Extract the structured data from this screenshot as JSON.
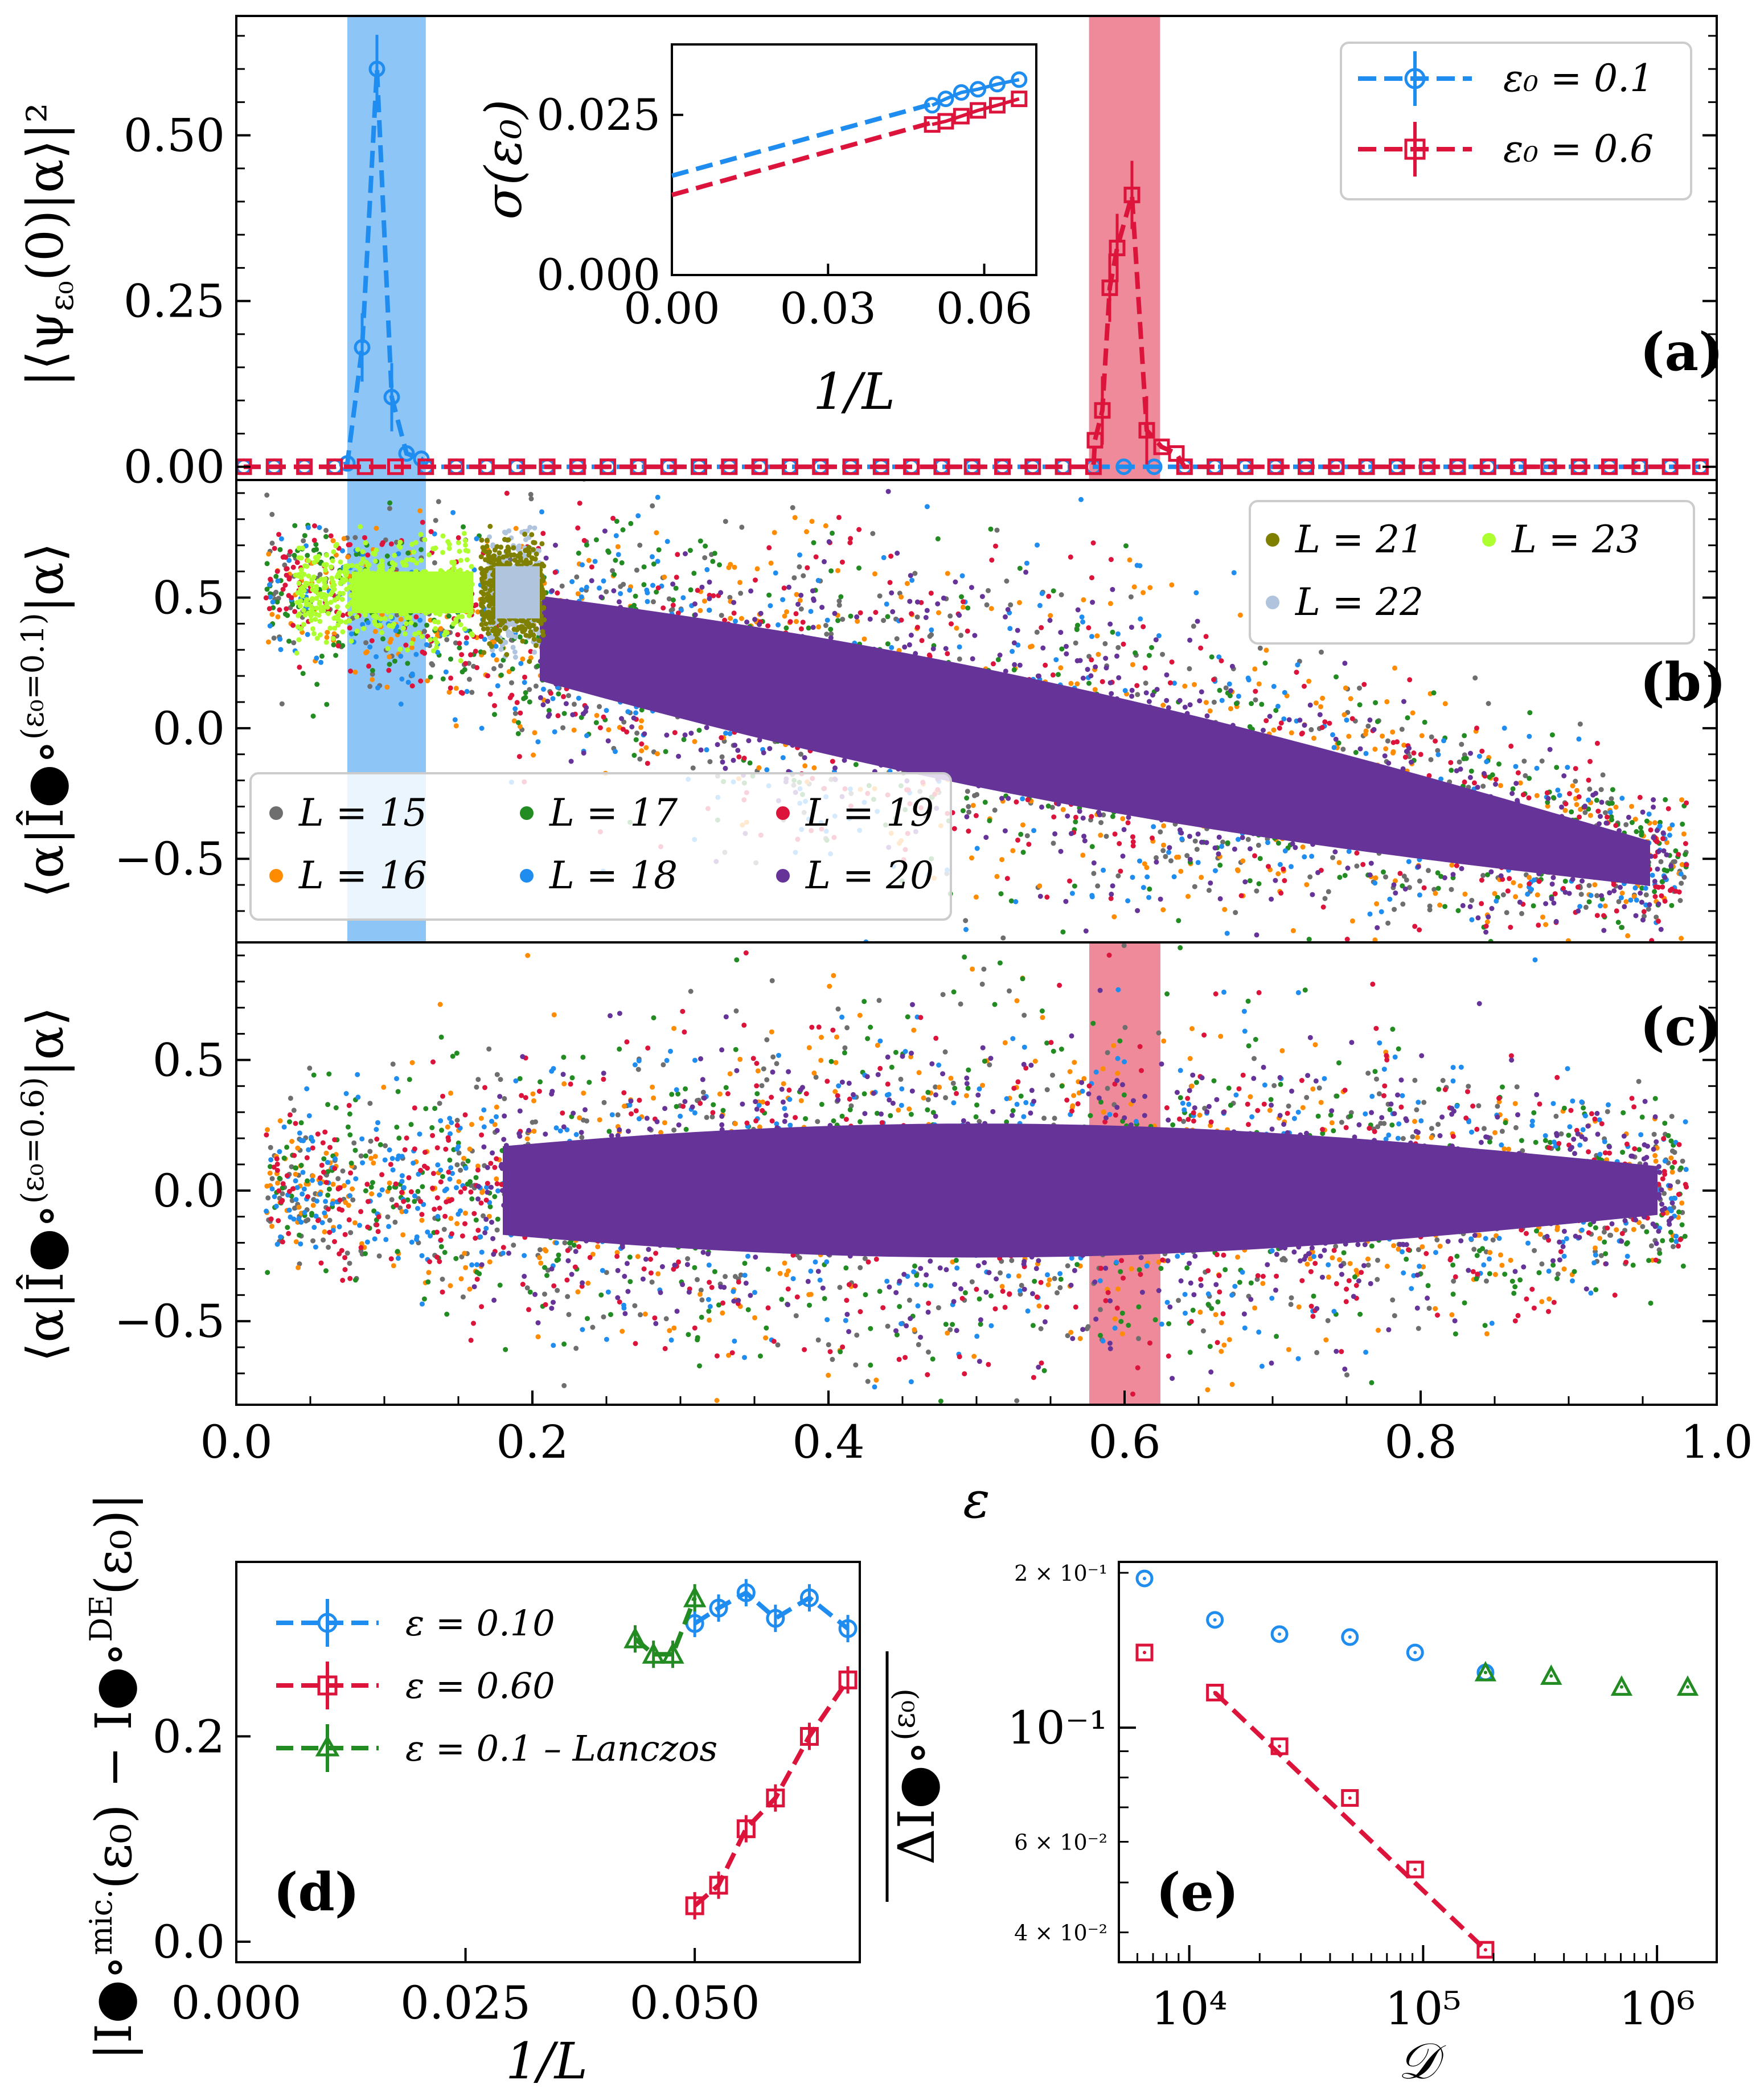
{
  "chart_data": [
    {
      "id": "a",
      "type": "line",
      "panel_label": "(a)",
      "ylabel": "|⟨ψ_ε₀(0)|α⟩|²",
      "xlim": [
        0.0,
        1.0
      ],
      "ylim": [
        -0.02,
        0.68
      ],
      "yticks": [
        "0.00",
        "0.25",
        "0.50"
      ],
      "bands": [
        {
          "x0": 0.075,
          "x1": 0.128,
          "color": "#8ec5f7"
        },
        {
          "x0": 0.576,
          "x1": 0.624,
          "color": "#ee8a99"
        }
      ],
      "series": [
        {
          "name": "ε₀ = 0.1",
          "color": "#1f8cf0",
          "marker": "circle",
          "peak_x": [
            0.075,
            0.085,
            0.095,
            0.105,
            0.115,
            0.125
          ],
          "peak_y": [
            0.005,
            0.18,
            0.6,
            0.105,
            0.02,
            0.012
          ]
        },
        {
          "name": "ε₀ = 0.6",
          "color": "#dc143c",
          "marker": "square",
          "peak_x": [
            0.58,
            0.585,
            0.59,
            0.595,
            0.605,
            0.615,
            0.625,
            0.635
          ],
          "peak_y": [
            0.04,
            0.085,
            0.27,
            0.33,
            0.41,
            0.055,
            0.03,
            0.02
          ]
        }
      ],
      "inset": {
        "xlabel": "1/L",
        "ylabel": "σ(ε₀)",
        "xticks": [
          "0.00",
          "0.03",
          "0.06"
        ],
        "yticks": [
          "0.000",
          "0.025"
        ],
        "xlim": [
          0.0,
          0.07
        ],
        "ylim": [
          0.0,
          0.036
        ],
        "series": [
          {
            "name": "ε₀ = 0.1",
            "color": "#1f8cf0",
            "marker": "circle",
            "x": [
              0.05,
              0.0526,
              0.0556,
              0.0588,
              0.0625,
              0.0667
            ],
            "y": [
              0.0265,
              0.0275,
              0.0285,
              0.029,
              0.0298,
              0.0305
            ],
            "fit": [
              [
                0.0,
                0.0155
              ],
              [
                0.05,
                0.0267
              ]
            ]
          },
          {
            "name": "ε₀ = 0.6",
            "color": "#dc143c",
            "marker": "square",
            "x": [
              0.05,
              0.0526,
              0.0556,
              0.0588,
              0.0625,
              0.0667
            ],
            "y": [
              0.0235,
              0.024,
              0.0248,
              0.0257,
              0.0265,
              0.0275
            ],
            "fit": [
              [
                0.0,
                0.0125
              ],
              [
                0.05,
                0.0238
              ]
            ]
          }
        ]
      },
      "legend": [
        "ε₀ = 0.1",
        "ε₀ = 0.6"
      ]
    },
    {
      "id": "b",
      "type": "scatter",
      "panel_label": "(b)",
      "ylabel": "⟨α|Î●∘^(ε₀=0.1)|α⟩",
      "xlim": [
        0.0,
        1.0
      ],
      "ylim": [
        -0.82,
        0.95
      ],
      "yticks": [
        "0.5",
        "0.0",
        "−0.5"
      ],
      "trend": {
        "slope": -1.15,
        "intercept": 0.58,
        "spread": 0.17
      },
      "legend_top": [
        "L = 21",
        "L = 22",
        "L = 23"
      ],
      "legend_bottom": [
        "L = 15",
        "L = 16",
        "L = 17",
        "L = 18",
        "L = 19",
        "L = 20"
      ]
    },
    {
      "id": "c",
      "type": "scatter",
      "panel_label": "(c)",
      "ylabel": "⟨α|Î●∘^(ε₀=0.6)|α⟩",
      "xlim": [
        0.0,
        1.0
      ],
      "ylim": [
        -0.82,
        0.95
      ],
      "yticks": [
        "0.5",
        "0.0",
        "−0.5"
      ],
      "xticks": [
        "0.0",
        "0.2",
        "0.4",
        "0.6",
        "0.8",
        "1.0"
      ],
      "xlabel": "ε",
      "trend": {
        "slope": 0.0,
        "intercept": 0.0,
        "spread": 0.19
      }
    },
    {
      "id": "d",
      "type": "line",
      "panel_label": "(d)",
      "xlabel": "1/L",
      "ylabel": "|I●∘^mic.(ε₀) − I●∘^DE(ε₀)|",
      "xlim": [
        0.0,
        0.068
      ],
      "ylim": [
        -0.02,
        0.37
      ],
      "xticks": [
        "0.000",
        "0.025",
        "0.050"
      ],
      "yticks": [
        "0.0",
        "0.2"
      ],
      "series": [
        {
          "name": "ε = 0.10",
          "color": "#1f8cf0",
          "marker": "circle",
          "x": [
            0.05,
            0.0526,
            0.0556,
            0.0588,
            0.0625,
            0.0667
          ],
          "y": [
            0.31,
            0.325,
            0.34,
            0.315,
            0.335,
            0.305
          ]
        },
        {
          "name": "ε = 0.60",
          "color": "#dc143c",
          "marker": "square",
          "x": [
            0.05,
            0.0526,
            0.0556,
            0.0588,
            0.0625,
            0.0667
          ],
          "y": [
            0.035,
            0.055,
            0.11,
            0.14,
            0.2,
            0.255
          ]
        },
        {
          "name": "ε = 0.1 – Lanczos",
          "color": "#228b22",
          "marker": "triangle",
          "x": [
            0.0435,
            0.0455,
            0.0476,
            0.05
          ],
          "y": [
            0.295,
            0.28,
            0.28,
            0.335
          ]
        }
      ]
    },
    {
      "id": "e",
      "type": "scatter",
      "panel_label": "(e)",
      "xlabel": "𝒟",
      "ylabel": "ΔI●∘^(ε₀) (overlined)",
      "xscale": "log",
      "yscale": "log",
      "xlim": [
        5000,
        1800000
      ],
      "ylim": [
        0.035,
        0.21
      ],
      "xticks": [
        "10⁴",
        "10⁵",
        "10⁶"
      ],
      "ytick_major": "10⁻¹",
      "ytick_minor": [
        "2 × 10⁻¹",
        "6 × 10⁻²",
        "4 × 10⁻²"
      ],
      "series": [
        {
          "name": "ε = 0.10",
          "color": "#1f8cf0",
          "marker": "circle",
          "x": [
            6435,
            12870,
            24310,
            48620,
            92378,
            184756
          ],
          "y": [
            0.195,
            0.162,
            0.152,
            0.15,
            0.14,
            0.128
          ]
        },
        {
          "name": "ε = 0.60",
          "color": "#dc143c",
          "marker": "square",
          "x": [
            6435,
            12870,
            24310,
            48620,
            92378,
            184756
          ],
          "y": [
            0.14,
            0.117,
            0.092,
            0.073,
            0.053,
            0.037
          ],
          "fit": true
        },
        {
          "name": "ε = 0.1 – Lanczos",
          "color": "#228b22",
          "marker": "triangle",
          "x": [
            184756,
            352716,
            705432,
            1352078
          ],
          "y": [
            0.128,
            0.126,
            0.12,
            0.12
          ]
        }
      ]
    }
  ],
  "colors": {
    "L15": "#6e6e6e",
    "L16": "#ff8c00",
    "L17": "#228b22",
    "L18": "#1f8cf0",
    "L19": "#dc143c",
    "L20": "#663399",
    "L21": "#808000",
    "L22": "#b0c4de",
    "L23": "#adff2f"
  }
}
